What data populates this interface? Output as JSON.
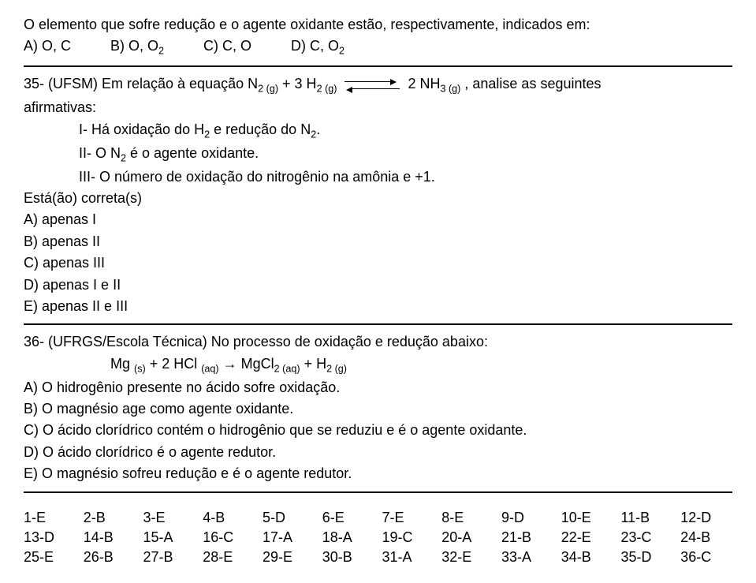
{
  "q34": {
    "stem": "O elemento que sofre redução e o agente oxidante estão, respectivamente, indicados em:",
    "opts": {
      "a": "A) O, C",
      "b": "B) O, O",
      "b_sub": "2",
      "c": "C) C, O",
      "d": "D) C, O",
      "d_sub": "2"
    }
  },
  "q35": {
    "lead": "35- (UFSM) Em relação à equação N",
    "n2sub": "2 (g)",
    "plus1": "  +   3 H",
    "h2sub": "2 (g)",
    "rhs": "2 NH",
    "nh3sub": "3 (g)",
    "tail": " , analise as seguintes",
    "afirm": "afirmativas:",
    "i_pre": "I- Há oxidação do H",
    "i_sub1": "2",
    "i_mid": " e redução do N",
    "i_sub2": "2",
    "i_dot": ".",
    "ii_pre": "II- O N",
    "ii_sub": "2",
    "ii_tail": " é o agente oxidante.",
    "iii": "III- O número de oxidação do nitrogênio na amônia e +1.",
    "correta": "Está(ão) correta(s)",
    "a": "A) apenas I",
    "b": "B) apenas II",
    "c": "C) apenas III",
    "d": "D) apenas I e II",
    "e": "E) apenas II e III"
  },
  "q36": {
    "stem": "36- (UFRGS/Escola Técnica) No processo de oxidação e redução abaixo:",
    "eq_lhs1": "Mg ",
    "eq_sub1": "(s)",
    "eq_mid1": "  +  2 HCl ",
    "eq_sub2": "(aq)",
    "arrow": " → ",
    "eq_rhs1": " MgCl",
    "eq_sub3": "2 (aq)",
    "eq_mid2": "  +  H",
    "eq_sub4": "2 (g)",
    "a": "A) O hidrogênio presente no ácido sofre oxidação.",
    "b": "B) O magnésio age como agente oxidante.",
    "c": "C) O ácido clorídrico contém o hidrogênio que se reduziu e é o agente oxidante.",
    "d": "D) O ácido clorídrico é o agente redutor.",
    "e": "E) O magnésio sofreu redução e é o agente redutor."
  },
  "answers": [
    "1-E",
    "2-B",
    "3-E",
    "4-B",
    "5-D",
    "6-E",
    "7-E",
    "8-E",
    "9-D",
    "10-E",
    "11-B",
    "12-D",
    "13-D",
    "14-B",
    "15-A",
    "16-C",
    "17-A",
    "18-A",
    "19-C",
    "20-A",
    "21-B",
    "22-E",
    "23-C",
    "24-B",
    "25-E",
    "26-B",
    "27-B",
    "28-E",
    "29-E",
    "30-B",
    "31-A",
    "32-E",
    "33-A",
    "34-B",
    "35-D",
    "36-C"
  ]
}
